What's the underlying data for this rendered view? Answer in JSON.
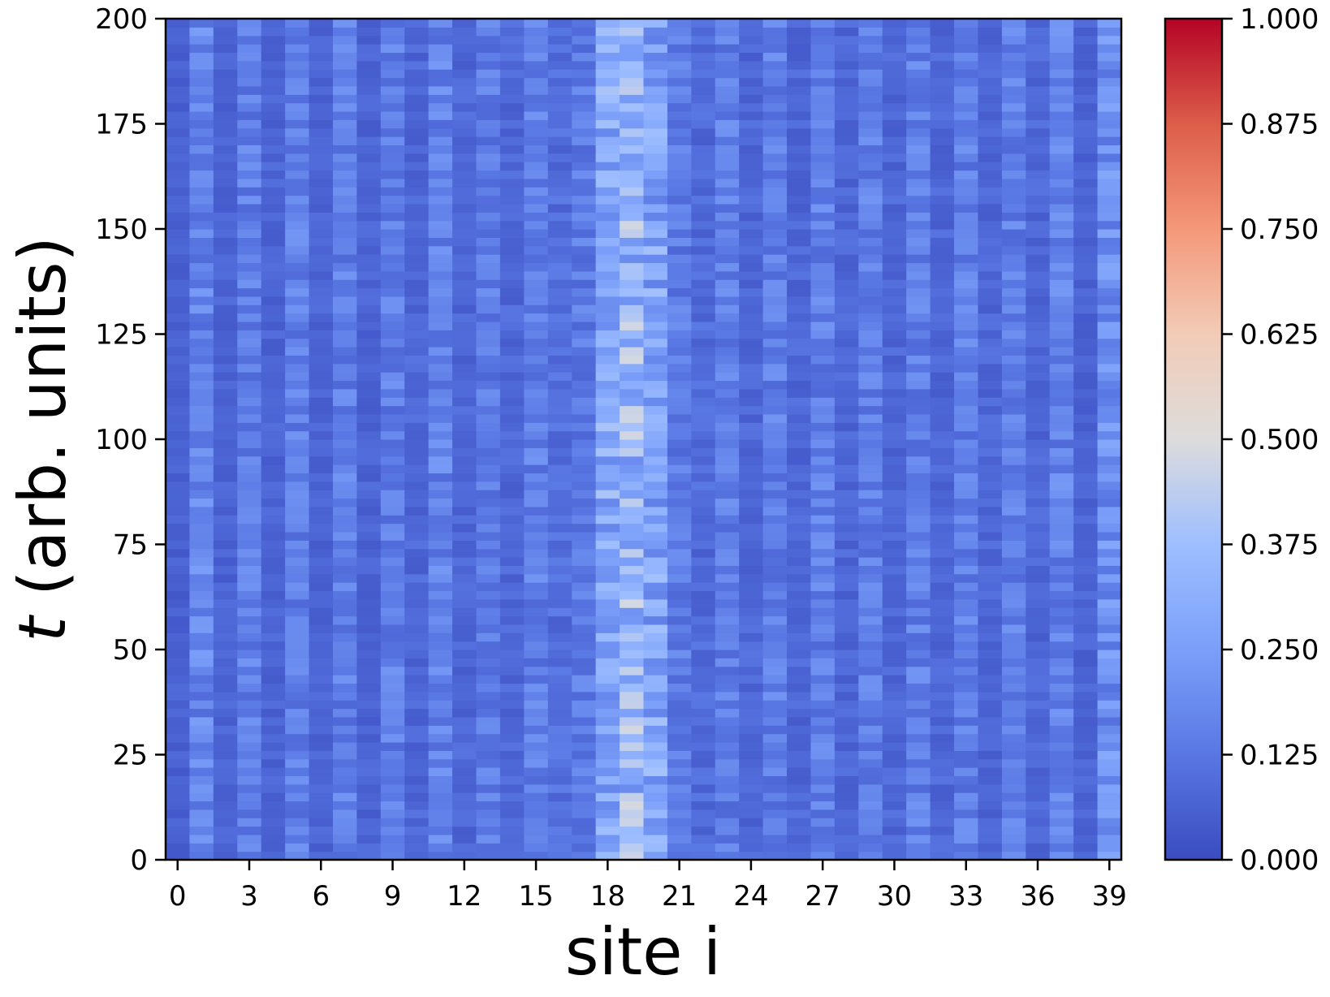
{
  "chart_data": {
    "type": "heatmap",
    "title": "",
    "xlabel": "site i",
    "ylabel_var": "t",
    "ylabel_rest": " (arb. units)",
    "x_range": [
      0,
      39
    ],
    "y_range": [
      0,
      200
    ],
    "x_ticks": [
      "0",
      "3",
      "6",
      "9",
      "12",
      "15",
      "18",
      "21",
      "24",
      "27",
      "30",
      "33",
      "36",
      "39"
    ],
    "y_ticks": [
      "0",
      "25",
      "50",
      "75",
      "100",
      "125",
      "150",
      "175",
      "200"
    ],
    "colorbar": {
      "min": 0.0,
      "max": 1.0,
      "ticks": [
        "0.000",
        "0.125",
        "0.250",
        "0.375",
        "0.500",
        "0.625",
        "0.750",
        "0.875",
        "1.000"
      ],
      "colormap": "coolwarm"
    },
    "site_mean_values": [
      0.06,
      0.17,
      0.07,
      0.15,
      0.07,
      0.15,
      0.07,
      0.15,
      0.07,
      0.15,
      0.08,
      0.16,
      0.08,
      0.14,
      0.08,
      0.15,
      0.1,
      0.14,
      0.28,
      0.34,
      0.27,
      0.14,
      0.09,
      0.15,
      0.08,
      0.15,
      0.08,
      0.15,
      0.08,
      0.15,
      0.08,
      0.15,
      0.08,
      0.15,
      0.08,
      0.15,
      0.08,
      0.16,
      0.07,
      0.2
    ],
    "gridlines": false,
    "colors": {
      "low": "#3b4cc0",
      "mid": "#dddddd",
      "high": "#b40426"
    }
  }
}
